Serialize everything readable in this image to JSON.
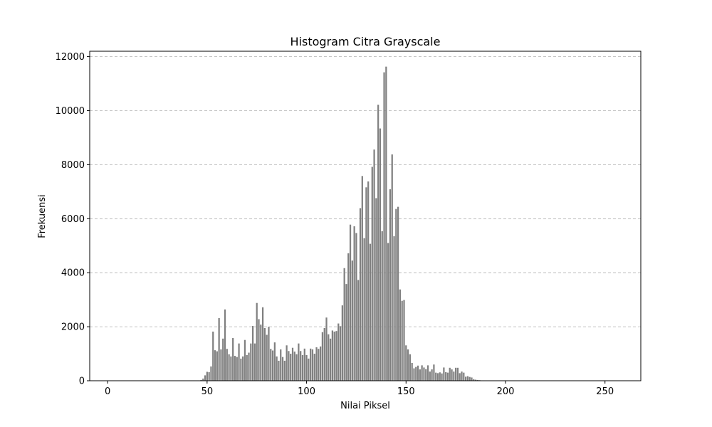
{
  "chart_data": {
    "type": "bar",
    "title": "Histogram Citra Grayscale",
    "xlabel": "Nilai Piksel",
    "ylabel": "Frekuensi",
    "xlim": [
      -9,
      268
    ],
    "ylim": [
      0,
      12200
    ],
    "xticks": [
      0,
      50,
      100,
      150,
      200,
      250
    ],
    "yticks": [
      0,
      2000,
      4000,
      6000,
      8000,
      10000,
      12000
    ],
    "grid": "y-dashed",
    "bar_color": "#808080",
    "x_start": 46,
    "values": [
      10,
      30,
      80,
      200,
      330,
      320,
      530,
      1820,
      1130,
      1090,
      2320,
      1160,
      1560,
      2640,
      1180,
      980,
      900,
      1580,
      920,
      880,
      1380,
      820,
      900,
      1510,
      950,
      1040,
      1380,
      2030,
      1380,
      2880,
      2280,
      2080,
      2720,
      1950,
      1700,
      2000,
      1180,
      1120,
      1420,
      900,
      740,
      1160,
      880,
      740,
      1310,
      1100,
      1000,
      1220,
      1080,
      980,
      1380,
      1100,
      950,
      1190,
      950,
      820,
      1190,
      1160,
      1000,
      1240,
      1180,
      1270,
      1800,
      1950,
      2340,
      1720,
      1560,
      1860,
      1820,
      1840,
      2120,
      2020,
      2790,
      4170,
      3580,
      4720,
      5780,
      4450,
      5720,
      5470,
      3730,
      6390,
      7580,
      5280,
      7160,
      7380,
      5070,
      7920,
      8560,
      6760,
      10220,
      9340,
      5540,
      11420,
      11630,
      5100,
      7090,
      8380,
      5350,
      6360,
      6440,
      3380,
      2960,
      2990,
      1310,
      1160,
      980,
      660,
      460,
      510,
      560,
      420,
      570,
      490,
      430,
      570,
      340,
      420,
      600,
      300,
      280,
      310,
      270,
      490,
      320,
      300,
      480,
      420,
      340,
      480,
      480,
      280,
      340,
      300,
      150,
      170,
      140,
      120,
      60,
      40,
      30,
      20,
      10
    ]
  }
}
